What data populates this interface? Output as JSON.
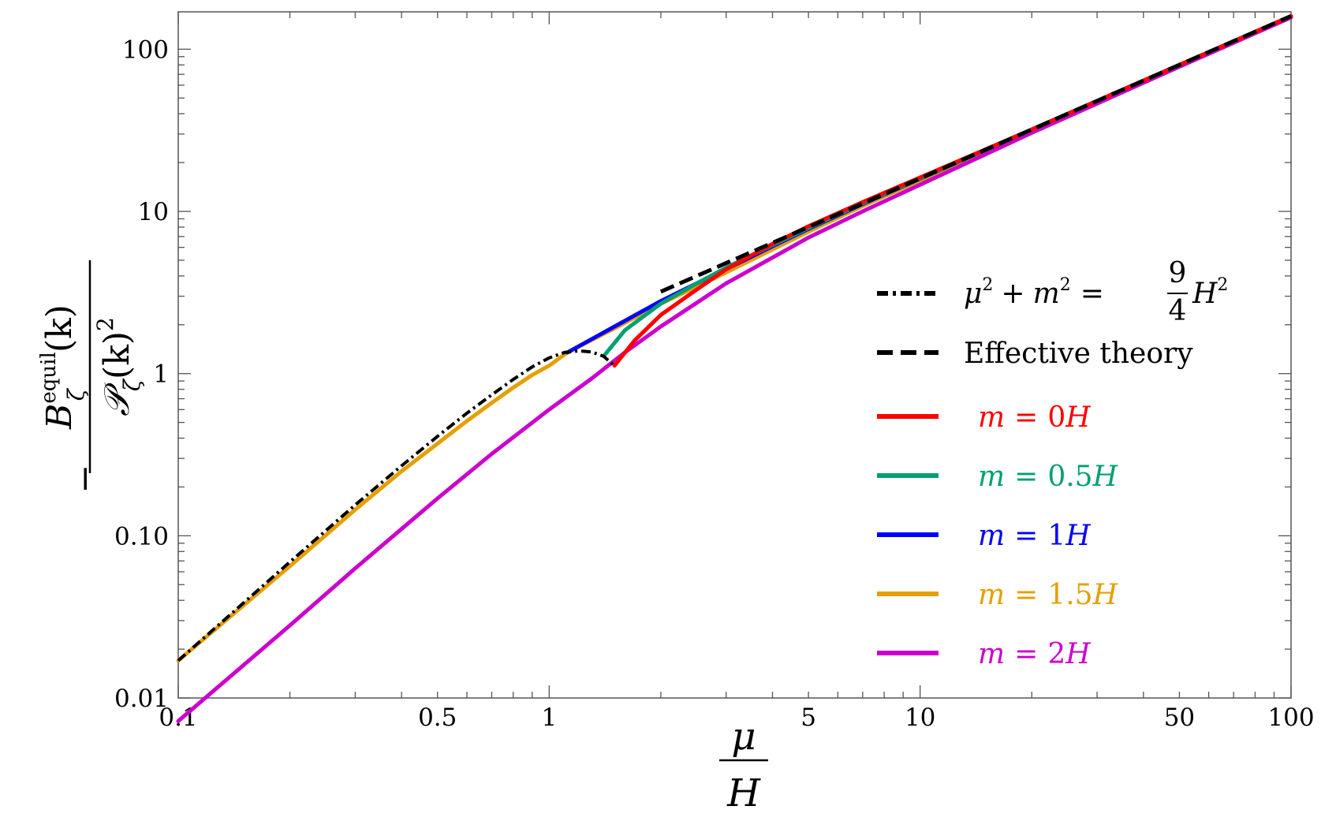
{
  "chart_data": {
    "type": "line",
    "x_scale": "log",
    "y_scale": "log",
    "xlim": [
      0.1,
      100
    ],
    "ylim": [
      0.01,
      170
    ],
    "x_ticks": [
      {
        "value": 0.1,
        "label": "0.1"
      },
      {
        "value": 0.5,
        "label": "0.5"
      },
      {
        "value": 1,
        "label": "1"
      },
      {
        "value": 5,
        "label": "5"
      },
      {
        "value": 10,
        "label": "10"
      },
      {
        "value": 50,
        "label": "50"
      },
      {
        "value": 100,
        "label": "100"
      }
    ],
    "y_ticks": [
      {
        "value": 0.01,
        "label": "0.01"
      },
      {
        "value": 0.1,
        "label": "0.10"
      },
      {
        "value": 1,
        "label": "1"
      },
      {
        "value": 10,
        "label": "10"
      },
      {
        "value": 100,
        "label": "100"
      }
    ],
    "xlabel": {
      "numerator": "μ",
      "denominator": "H"
    },
    "ylabel": {
      "sign": "−",
      "numerator": "B",
      "numerator_superscript": "equil",
      "numerator_subscript": "ζ",
      "numerator_argument": "(k)",
      "denominator": "𝒫",
      "denominator_subscript": "ζ",
      "denominator_argument": "(k)",
      "denominator_power": "2"
    },
    "legend_position": "right",
    "series": [
      {
        "name": "μ² + m² = 9/4 H²",
        "color": "#000000",
        "style": "dashdot",
        "points": [
          [
            0.1,
            0.017
          ],
          [
            0.2,
            0.069
          ],
          [
            0.3,
            0.155
          ],
          [
            0.4,
            0.27
          ],
          [
            0.5,
            0.41
          ],
          [
            0.6,
            0.57
          ],
          [
            0.7,
            0.74
          ],
          [
            0.8,
            0.92
          ],
          [
            0.9,
            1.1
          ],
          [
            1.0,
            1.25
          ],
          [
            1.1,
            1.35
          ],
          [
            1.2,
            1.38
          ],
          [
            1.3,
            1.36
          ],
          [
            1.4,
            1.28
          ],
          [
            1.5,
            1.12
          ]
        ]
      },
      {
        "name": "Effective theory",
        "color": "#000000",
        "style": "dashed",
        "points": [
          [
            2.0,
            3.2
          ],
          [
            3,
            4.8
          ],
          [
            5,
            8.0
          ],
          [
            10,
            16
          ],
          [
            20,
            32
          ],
          [
            50,
            80
          ],
          [
            100,
            160
          ]
        ]
      },
      {
        "name": "m = 0H",
        "color": "#ff0000",
        "style": "solid",
        "points": [
          [
            1.5,
            1.12
          ],
          [
            1.7,
            1.6
          ],
          [
            2,
            2.3
          ],
          [
            2.5,
            3.3
          ],
          [
            3,
            4.4
          ],
          [
            4,
            6.3
          ],
          [
            5,
            8.1
          ],
          [
            7,
            11.4
          ],
          [
            10,
            16.2
          ],
          [
            20,
            32
          ],
          [
            50,
            80
          ],
          [
            100,
            160
          ]
        ]
      },
      {
        "name": "m = 0.5H",
        "color": "#009f73",
        "style": "solid",
        "points": [
          [
            1.41,
            1.3
          ],
          [
            1.6,
            1.85
          ],
          [
            2,
            2.7
          ],
          [
            2.5,
            3.6
          ],
          [
            3,
            4.5
          ],
          [
            4,
            6.2
          ],
          [
            5,
            7.9
          ],
          [
            7,
            11.2
          ],
          [
            10,
            16
          ],
          [
            20,
            32
          ],
          [
            50,
            80
          ],
          [
            100,
            160
          ]
        ]
      },
      {
        "name": "m = 1H",
        "color": "#0000ff",
        "style": "solid",
        "points": [
          [
            1.12,
            1.35
          ],
          [
            1.5,
            1.95
          ],
          [
            2,
            2.8
          ],
          [
            2.5,
            3.6
          ],
          [
            3,
            4.4
          ],
          [
            4,
            6.1
          ],
          [
            5,
            7.8
          ],
          [
            7,
            11.1
          ],
          [
            10,
            15.9
          ],
          [
            20,
            32
          ],
          [
            50,
            80
          ],
          [
            100,
            160
          ]
        ]
      },
      {
        "name": "m = 1.5H",
        "color": "#e69f00",
        "style": "solid",
        "points": [
          [
            0.1,
            0.017
          ],
          [
            0.2,
            0.065
          ],
          [
            0.3,
            0.145
          ],
          [
            0.4,
            0.25
          ],
          [
            0.5,
            0.37
          ],
          [
            0.6,
            0.51
          ],
          [
            0.7,
            0.66
          ],
          [
            0.8,
            0.82
          ],
          [
            0.9,
            0.98
          ],
          [
            1.0,
            1.12
          ],
          [
            1.12,
            1.35
          ],
          [
            1.5,
            1.9
          ],
          [
            2,
            2.7
          ],
          [
            3,
            4.2
          ],
          [
            5,
            7.5
          ],
          [
            7,
            10.8
          ],
          [
            10,
            15.5
          ],
          [
            20,
            31.5
          ],
          [
            50,
            79
          ],
          [
            100,
            158
          ]
        ]
      },
      {
        "name": "m = 2H",
        "color": "#cc00cc",
        "style": "solid",
        "points": [
          [
            0.1,
            0.0072
          ],
          [
            0.2,
            0.028
          ],
          [
            0.3,
            0.063
          ],
          [
            0.5,
            0.17
          ],
          [
            0.7,
            0.32
          ],
          [
            1.0,
            0.6
          ],
          [
            1.3,
            0.93
          ],
          [
            1.6,
            1.35
          ],
          [
            2,
            1.95
          ],
          [
            3,
            3.6
          ],
          [
            5,
            6.9
          ],
          [
            7,
            10.0
          ],
          [
            10,
            14.6
          ],
          [
            20,
            30.5
          ],
          [
            50,
            78
          ],
          [
            100,
            157
          ]
        ]
      }
    ]
  },
  "legend": {
    "dashdot": {
      "term1": "μ",
      "sq": "2",
      "plus": "+",
      "term2": "m",
      "sq2": "2",
      "eq": "=",
      "num": "9",
      "den": "4",
      "term3": "H",
      "sq3": "2"
    },
    "effective": "Effective theory",
    "entries": [
      {
        "m": "m",
        "eq": "=",
        "val": "0",
        "unit": "H"
      },
      {
        "m": "m",
        "eq": "=",
        "val": "0.5",
        "unit": "H"
      },
      {
        "m": "m",
        "eq": "=",
        "val": "1",
        "unit": "H"
      },
      {
        "m": "m",
        "eq": "=",
        "val": "1.5",
        "unit": "H"
      },
      {
        "m": "m",
        "eq": "=",
        "val": "2",
        "unit": "H"
      }
    ]
  }
}
